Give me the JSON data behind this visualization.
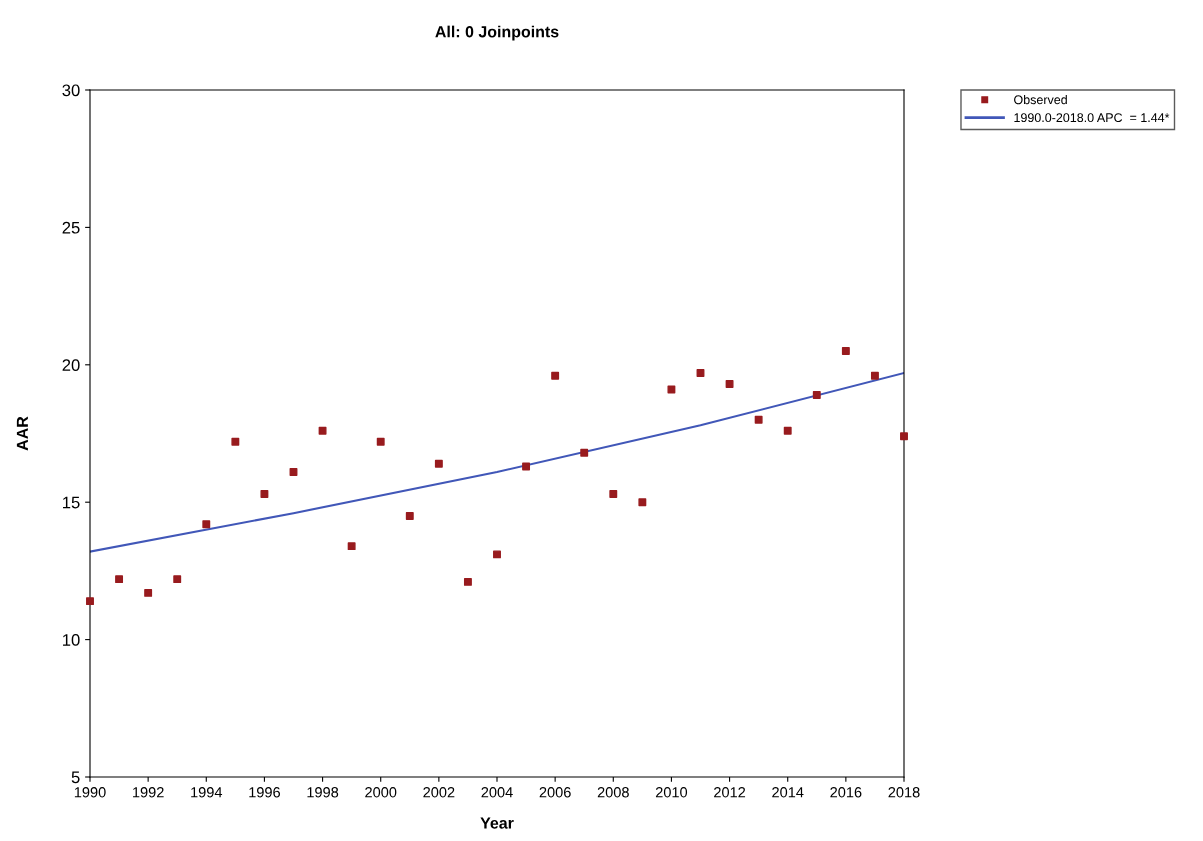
{
  "chart_data": {
    "type": "scatter",
    "title": "All: 0 Joinpoints",
    "xlabel": "Year",
    "ylabel": "AAR",
    "series": [
      {
        "name": "Observed",
        "color": "#981b1e",
        "marker": "square",
        "x": [
          1990,
          1991,
          1992,
          1993,
          1994,
          1995,
          1996,
          1997,
          1998,
          1999,
          2000,
          2001,
          2002,
          2003,
          2004,
          2005,
          2006,
          2007,
          2008,
          2009,
          2010,
          2011,
          2012,
          2013,
          2014,
          2015,
          2016,
          2017,
          2018
        ],
        "values": [
          11.4,
          12.2,
          11.7,
          12.2,
          14.2,
          17.2,
          15.3,
          16.1,
          17.6,
          13.4,
          17.2,
          14.5,
          16.4,
          12.1,
          13.1,
          16.3,
          19.6,
          16.8,
          15.3,
          15.0,
          19.1,
          19.7,
          19.3,
          18.0,
          17.6,
          18.9,
          20.5,
          19.6,
          17.4
        ]
      },
      {
        "name": "1990.0-2018.0 APC  = 1.44*",
        "type": "line",
        "color": "#4157b8",
        "marker": "none",
        "line_style": "solid",
        "x": [
          1990,
          1997,
          2004,
          2011,
          2018
        ],
        "values": [
          13.2,
          14.6,
          16.1,
          17.8,
          19.7
        ]
      }
    ],
    "xlim": [
      1990,
      2018
    ],
    "xticks": [
      1990,
      1992,
      1994,
      1996,
      1998,
      2000,
      2002,
      2004,
      2006,
      2008,
      2010,
      2012,
      2014,
      2016,
      2018
    ],
    "ylim": [
      5,
      30
    ],
    "yticks": [
      5,
      10,
      15,
      20,
      25,
      30
    ],
    "grid": false,
    "legend": "top right"
  }
}
